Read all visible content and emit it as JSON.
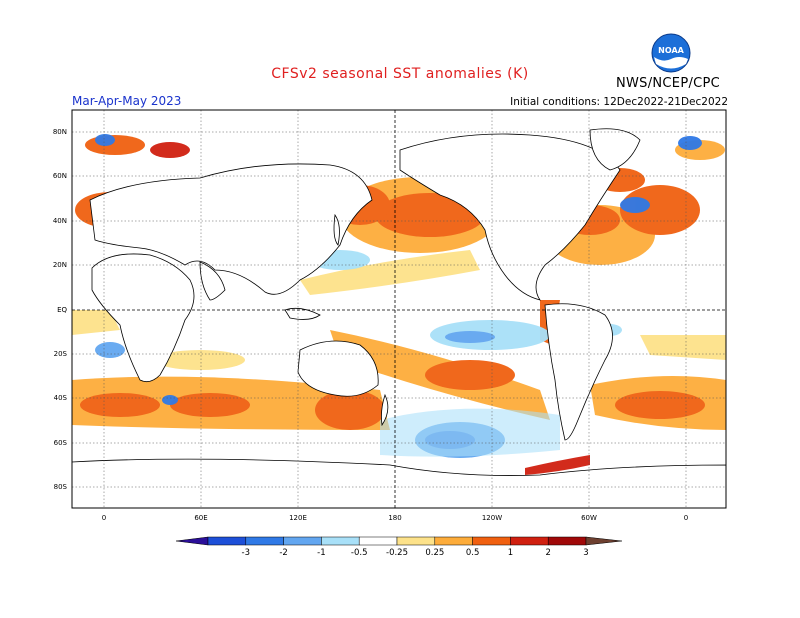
{
  "title": "CFSv2 seasonal SST anomalies (K)",
  "season": "Mar-Apr-May 2023",
  "initial_conditions": "Initial conditions: 12Dec2022-21Dec2022",
  "agency": "NWS/NCEP/CPC",
  "logo": {
    "text": "NOAA",
    "icon": "noaa-logo-icon"
  },
  "map": {
    "lat_labels": [
      "80N",
      "60N",
      "40N",
      "20N",
      "EQ",
      "20S",
      "40S",
      "60S",
      "80S"
    ],
    "lon_labels": [
      "0",
      "60E",
      "120E",
      "180",
      "120W",
      "60W",
      "0"
    ]
  },
  "colorbar": {
    "levels": [
      "-3",
      "-2",
      "-1",
      "-0.5",
      "-0.25",
      "0.25",
      "0.5",
      "1",
      "2",
      "3"
    ],
    "colors": [
      "#2b0f99",
      "#1d4fd8",
      "#2f79e6",
      "#62a6f0",
      "#a8e0f8",
      "#ffffff",
      "#fde28a",
      "#fdac3a",
      "#f06010",
      "#d02010",
      "#a00808",
      "#6e4030"
    ]
  }
}
